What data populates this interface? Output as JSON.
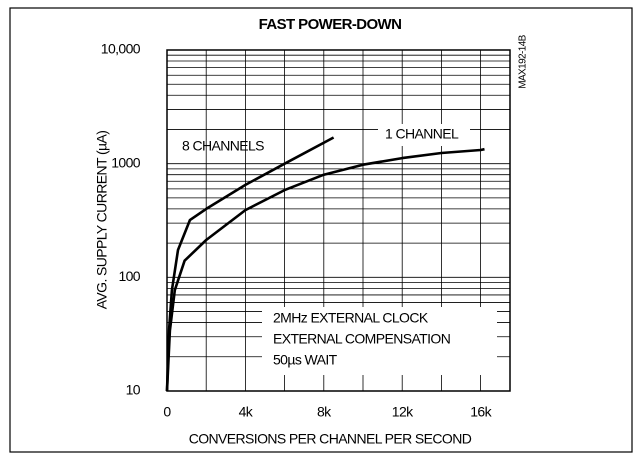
{
  "chart_data": {
    "type": "line",
    "title": "FAST POWER-DOWN",
    "xlabel": "CONVERSIONS PER CHANNEL PER SECOND",
    "ylabel": "AVG. SUPPLY CURRENT (µA)",
    "ylog": true,
    "grid": true,
    "color": "#000000",
    "xlim": [
      0,
      17500
    ],
    "ylim": [
      10,
      10000
    ],
    "xticks": [
      0,
      {
        "value": 4000,
        "label": "4k"
      },
      {
        "value": 8000,
        "label": "8k"
      },
      {
        "value": 12000,
        "label": "12k"
      },
      {
        "value": 16000,
        "label": "16k"
      }
    ],
    "yticks": [
      10,
      100,
      1000,
      {
        "value": 10000,
        "label": "10,000"
      }
    ],
    "minor_xticks": [
      2000,
      6000,
      10000,
      14000
    ],
    "minor_yticks": [
      20,
      30,
      40,
      50,
      60,
      70,
      80,
      90,
      200,
      300,
      400,
      500,
      600,
      700,
      800,
      900,
      2000,
      3000,
      4000,
      5000,
      6000,
      7000,
      8000,
      9000
    ],
    "series": [
      {
        "name": "8 CHANNELS",
        "x": [
          0,
          100,
          250,
          560,
          1170,
          2000,
          4000,
          6000,
          8500
        ],
        "values": [
          10,
          34,
          77,
          174,
          319,
          400,
          650,
          1000,
          1700
        ]
      },
      {
        "name": "1 CHANNEL",
        "x": [
          0,
          150,
          400,
          900,
          2000,
          4000,
          6000,
          8000,
          10000,
          12000,
          14000,
          16000,
          16200
        ],
        "values": [
          10,
          34,
          77,
          140,
          213,
          390,
          585,
          800,
          980,
          1120,
          1240,
          1320,
          1340
        ]
      }
    ],
    "annotations": [
      "2MHz EXTERNAL CLOCK",
      "EXTERNAL COMPENSATION",
      "50µs WAIT",
      "MAX192-14B"
    ]
  }
}
